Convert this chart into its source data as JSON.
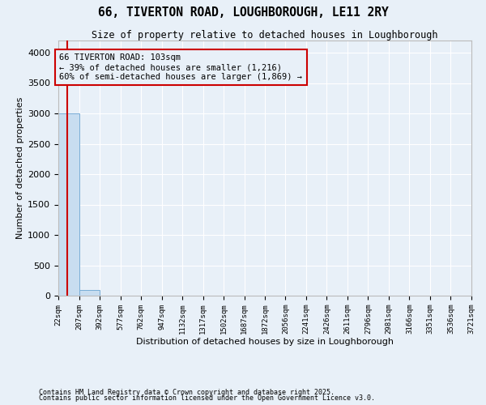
{
  "title": "66, TIVERTON ROAD, LOUGHBOROUGH, LE11 2RY",
  "subtitle": "Size of property relative to detached houses in Loughborough",
  "xlabel": "Distribution of detached houses by size in Loughborough",
  "ylabel": "Number of detached properties",
  "footnote1": "Contains HM Land Registry data © Crown copyright and database right 2025.",
  "footnote2": "Contains public sector information licensed under the Open Government Licence v3.0.",
  "annotation_line1": "66 TIVERTON ROAD: 103sqm",
  "annotation_line2": "← 39% of detached houses are smaller (1,216)",
  "annotation_line3": "60% of semi-detached houses are larger (1,869) →",
  "property_size": 103,
  "bar_color": "#c8ddf0",
  "bar_edge_color": "#7aaed6",
  "vline_color": "#cc0000",
  "annotation_box_color": "#cc0000",
  "background_color": "#e8f0f8",
  "grid_color": "#ffffff",
  "ylim": [
    0,
    4200
  ],
  "yticks": [
    0,
    500,
    1000,
    1500,
    2000,
    2500,
    3000,
    3500,
    4000
  ],
  "bins": [
    22,
    207,
    392,
    577,
    762,
    947,
    1132,
    1317,
    1502,
    1687,
    1872,
    2056,
    2241,
    2426,
    2611,
    2796,
    2981,
    3166,
    3351,
    3536,
    3721
  ],
  "counts": [
    3000,
    100,
    3,
    2,
    1,
    1,
    1,
    0,
    0,
    0,
    0,
    0,
    0,
    0,
    0,
    0,
    0,
    0,
    0,
    0
  ],
  "title_fontsize": 10.5,
  "subtitle_fontsize": 8.5,
  "ylabel_fontsize": 8,
  "xlabel_fontsize": 8,
  "ytick_fontsize": 8,
  "xtick_fontsize": 6.5,
  "annotation_fontsize": 7.5,
  "footnote_fontsize": 6
}
